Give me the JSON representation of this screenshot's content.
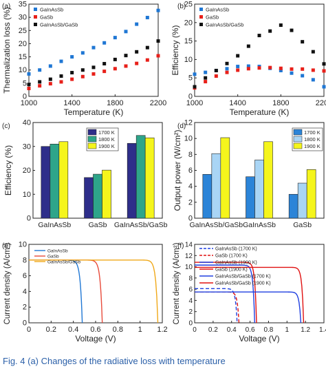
{
  "caption": "Fig. 4   (a) Changes of the radiative loss with temperature",
  "chart_data": [
    {
      "panel": "(a)",
      "type": "scatter",
      "xlabel": "Temperature (K)",
      "ylabel": "Thermalization loss (%)",
      "xlim": [
        1000,
        2200
      ],
      "ylim": [
        0,
        35
      ],
      "xticks": [
        1000,
        1400,
        1800,
        2200
      ],
      "yticks": [
        0,
        5,
        10,
        15,
        20,
        25,
        30,
        35
      ],
      "legend_position": "top-left",
      "x": [
        1000,
        1100,
        1200,
        1300,
        1400,
        1500,
        1600,
        1700,
        1800,
        1900,
        2000,
        2100,
        2200
      ],
      "series": [
        {
          "name": "GaInAsSb",
          "color": "#1f77d4",
          "marker": "square",
          "values": [
            8.5,
            10,
            11.5,
            13.3,
            15,
            16.5,
            18.5,
            20.3,
            22.3,
            24.6,
            27.4,
            29.9,
            32.6
          ]
        },
        {
          "name": "GaSb",
          "color": "#e8201a",
          "marker": "square",
          "values": [
            3,
            4,
            4.8,
            5.5,
            6.5,
            7.5,
            8.5,
            9.5,
            10.5,
            11.5,
            12.5,
            13.8,
            15.4
          ]
        },
        {
          "name": "GaInAsSb/GaSb",
          "color": "#111111",
          "marker": "square",
          "values": [
            4.5,
            5.5,
            6.5,
            7.7,
            9,
            10,
            11,
            12.4,
            14,
            15.5,
            16.9,
            18.5,
            21
          ]
        }
      ]
    },
    {
      "panel": "(b)",
      "type": "scatter",
      "xlabel": "Temperature (K)",
      "ylabel": "Efficiency (%)",
      "xlim": [
        1000,
        2200
      ],
      "ylim": [
        0,
        25
      ],
      "xticks": [
        1000,
        1400,
        1800,
        2200
      ],
      "yticks": [
        0,
        5,
        10,
        15,
        20,
        25
      ],
      "legend_position": "top-left",
      "x": [
        1000,
        1100,
        1200,
        1300,
        1400,
        1500,
        1600,
        1700,
        1800,
        1900,
        2000,
        2100,
        2200
      ],
      "series": [
        {
          "name": "GaInAsSb",
          "color": "#1f77d4",
          "marker": "square",
          "values": [
            6,
            6.5,
            7,
            7.5,
            8.1,
            8.2,
            8.1,
            7.6,
            7,
            6.3,
            5.6,
            4.5,
            2.6
          ]
        },
        {
          "name": "GaSb",
          "color": "#e8201a",
          "marker": "square",
          "values": [
            2.3,
            4,
            5.5,
            6.5,
            7.1,
            7.5,
            7.7,
            7.8,
            7.6,
            7.4,
            7.4,
            7.1,
            6.9
          ]
        },
        {
          "name": "GaInAsSb/GaSb",
          "color": "#111111",
          "marker": "square",
          "values": [
            2.6,
            5,
            7,
            8.9,
            11,
            13.6,
            16.5,
            17.7,
            19.3,
            17.9,
            14.8,
            12.1,
            8.8
          ]
        }
      ]
    },
    {
      "panel": "(c)",
      "type": "bar",
      "ylabel": "Efficiency (%)",
      "ylim": [
        0,
        40
      ],
      "yticks": [
        0,
        10,
        20,
        30,
        40
      ],
      "legend_position": "top-center",
      "categories": [
        "GaInAsSb",
        "GaSb",
        "GaInAsSb/GaSb"
      ],
      "series": [
        {
          "name": "1700 K",
          "color": "#2e2e8a",
          "values": [
            30,
            17,
            31.3
          ]
        },
        {
          "name": "1800 K",
          "color": "#2ea58a",
          "values": [
            31,
            18.4,
            34.6
          ]
        },
        {
          "name": "1900 K",
          "color": "#f5f51c",
          "values": [
            32,
            20.1,
            33.6
          ]
        }
      ]
    },
    {
      "panel": "(d)",
      "type": "bar",
      "ylabel": "Output power (W/cm²)",
      "ylim": [
        0,
        12
      ],
      "yticks": [
        0,
        2,
        4,
        6,
        8,
        10,
        12
      ],
      "legend_position": "top-right",
      "categories": [
        "GaInAsSb/GaSb",
        "GaInAsSb",
        "GaSb"
      ],
      "series": [
        {
          "name": "1700 K",
          "color": "#2b84d8",
          "values": [
            5.5,
            5.2,
            3
          ]
        },
        {
          "name": "1800 K",
          "color": "#a9d5f5",
          "values": [
            8.1,
            7.3,
            4.4
          ]
        },
        {
          "name": "1900 K",
          "color": "#f5f51c",
          "values": [
            10.1,
            9.6,
            6.1
          ]
        }
      ]
    },
    {
      "panel": "(e)",
      "type": "line",
      "xlabel": "Voltage (V)",
      "ylabel": "Current density (A/cm²)",
      "xlim": [
        0,
        1.2
      ],
      "ylim": [
        0,
        10
      ],
      "xticks": [
        0,
        0.2,
        0.4,
        0.6,
        0.8,
        1.0,
        1.2
      ],
      "yticks": [
        0,
        2,
        4,
        6,
        8,
        10
      ],
      "legend_position": "top-left",
      "series": [
        {
          "name": "GaInAsSb",
          "color": "#1f77d4",
          "dash": "solid",
          "jsc": 8,
          "voc": 0.48
        },
        {
          "name": "GaSb",
          "color": "#e84a3a",
          "dash": "solid",
          "jsc": 8,
          "voc": 0.66
        },
        {
          "name": "GaInAsSb/GaSb",
          "color": "#f0a818",
          "dash": "solid",
          "jsc": 8,
          "voc": 1.16
        }
      ]
    },
    {
      "panel": "(f)",
      "type": "line",
      "xlabel": "Voltage (V)",
      "ylabel": "Current density (A/cm²)",
      "xlim": [
        0,
        1.4
      ],
      "ylim": [
        0,
        14
      ],
      "xticks": [
        0,
        0.2,
        0.4,
        0.6,
        0.8,
        1.0,
        1.2,
        1.4
      ],
      "yticks": [
        0,
        2,
        4,
        6,
        8,
        10,
        12,
        14
      ],
      "legend_position": "top-right",
      "series": [
        {
          "name": "GaInAsSb (1700 K)",
          "color": "#1f3fe0",
          "dash": "dashed",
          "jsc": 6.1,
          "voc": 0.46
        },
        {
          "name": "GaSb (1700 K)",
          "color": "#e01010",
          "dash": "dashed",
          "jsc": 5.5,
          "voc": 0.48
        },
        {
          "name": "GaInAsSb (1900 K)",
          "color": "#1f3fe0",
          "dash": "solid",
          "jsc": 10.3,
          "voc": 0.65
        },
        {
          "name": "GaSb (1900 K)",
          "color": "#e01010",
          "dash": "solid",
          "jsc": 10.8,
          "voc": 0.67
        },
        {
          "name": "GaInAsSb/GaSb (1700 K)",
          "color": "#1f3fe0",
          "dash": "solid",
          "jsc": 5.5,
          "voc": 1.15
        },
        {
          "name": "GaInAsSb/GaSb (1900 K)",
          "color": "#e01010",
          "dash": "solid",
          "jsc": 9.9,
          "voc": 1.18
        }
      ]
    }
  ],
  "panels": {
    "a": {
      "label": "(a)",
      "xlabel": "Temperature (K)",
      "ylabel": "Thermalization loss (%)",
      "xticks": [
        "1000",
        "1400",
        "1800",
        "2200"
      ],
      "yticks": [
        "0",
        "5",
        "10",
        "15",
        "20",
        "25",
        "30",
        "35"
      ],
      "legend": [
        "GaInAsSb",
        "GaSb",
        "GaInAsSb/GaSb"
      ]
    },
    "b": {
      "label": "(b)",
      "xlabel": "Temperature (K)",
      "ylabel": "Efficiency (%)",
      "xticks": [
        "1000",
        "1400",
        "1800",
        "2200"
      ],
      "yticks": [
        "0",
        "5",
        "10",
        "15",
        "20",
        "25"
      ],
      "legend": [
        "GaInAsSb",
        "GaSb",
        "GaInAsSb/GaSb"
      ]
    },
    "c": {
      "label": "(c)",
      "ylabel": "Efficiency (%)",
      "yticks": [
        "0",
        "10",
        "20",
        "30",
        "40"
      ],
      "categories": [
        "GaInAsSb",
        "GaSb",
        "GaInAsSb/GaSb"
      ],
      "legend": [
        "1700 K",
        "1800 K",
        "1900 K"
      ]
    },
    "d": {
      "label": "(d)",
      "ylabel": "Output power (W/cm²)",
      "yticks": [
        "0",
        "2",
        "4",
        "6",
        "8",
        "10",
        "12"
      ],
      "categories": [
        "GaInAsSb/GaSb",
        "GaInAsSb",
        "GaSb"
      ],
      "legend": [
        "1700 K",
        "1800 K",
        "1900 K"
      ]
    },
    "e": {
      "label": "(e)",
      "xlabel": "Voltage (V)",
      "ylabel": "Current density (A/cm²)",
      "xticks": [
        "0",
        "0.2",
        "0.4",
        "0.6",
        "0.8",
        "1",
        "1.2"
      ],
      "yticks": [
        "0",
        "2",
        "4",
        "6",
        "8",
        "10"
      ],
      "legend": [
        "GaInAsSb",
        "GaSb",
        "GaInAsSb/GaSb"
      ]
    },
    "f": {
      "label": "(f)",
      "xlabel": "Voltage (V)",
      "ylabel": "Current density (A/cm²)",
      "xticks": [
        "0",
        "0.2",
        "0.4",
        "0.6",
        "0.8",
        "1",
        "1.2",
        "1.4"
      ],
      "yticks": [
        "0",
        "2",
        "4",
        "6",
        "8",
        "10",
        "12",
        "14"
      ],
      "legend": [
        "GaInAsSb (1700 K)",
        "GaSb (1700 K)",
        "GaInAsSb (1900 K)",
        "GaSb (1900 K)",
        "GaInAsSb/GaSb (1700 K)",
        "GaInAsSb/GaSb (1900 K)"
      ]
    }
  }
}
